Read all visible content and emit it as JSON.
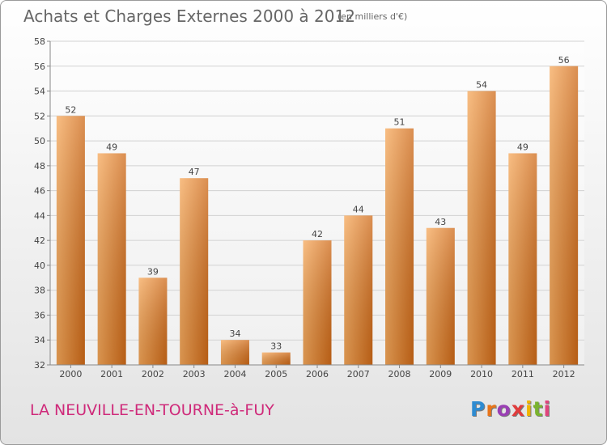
{
  "header": {
    "title": "Achats et Charges Externes 2000 à 2012",
    "unit": "(en milliers d'€)"
  },
  "footer": {
    "commune": "LA NEUVILLE-EN-TOURNE-à-FUY",
    "logo": {
      "text": "Proxiti",
      "letter_colors": [
        "#2e8bd1",
        "#e8751a",
        "#9a3fb4",
        "#e03c3c",
        "#f0b400",
        "#7ab32e",
        "#e0447c"
      ]
    }
  },
  "chart_data": {
    "type": "bar",
    "categories": [
      "2000",
      "2001",
      "2002",
      "2003",
      "2004",
      "2005",
      "2006",
      "2007",
      "2008",
      "2009",
      "2010",
      "2011",
      "2012"
    ],
    "values": [
      52,
      49,
      39,
      47,
      34,
      33,
      42,
      44,
      51,
      43,
      54,
      49,
      56
    ],
    "ylim": [
      32,
      58
    ],
    "yticks": [
      32,
      34,
      36,
      38,
      40,
      42,
      44,
      46,
      48,
      50,
      52,
      54,
      56,
      58
    ],
    "grid": true,
    "bar_color_light": "#f6a85a",
    "bar_color_dark": "#cf6a18",
    "data_labels": true
  }
}
